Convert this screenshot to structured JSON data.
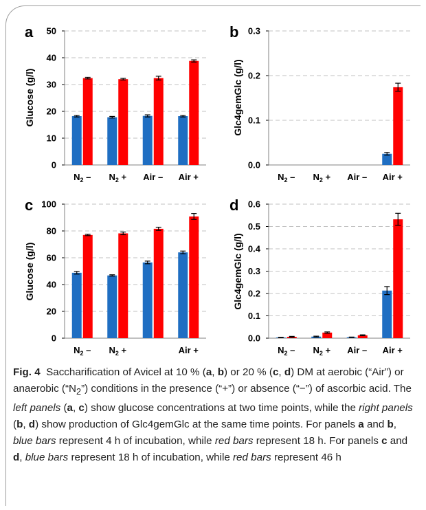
{
  "colors": {
    "blue": "#1f6ec2",
    "red": "#ff0000",
    "grid": "#c0c0c0",
    "axis": "#000000"
  },
  "chart_data": [
    {
      "type": "bar",
      "panel_label": "a",
      "categories": [
        "N2 –",
        "N2 +",
        "Air –",
        "Air +"
      ],
      "ylabel": "Glucose (g/l)",
      "ylim": [
        0,
        50
      ],
      "yticks": [
        "0",
        "10",
        "20",
        "30",
        "40",
        "50"
      ],
      "grid": true,
      "series": [
        {
          "color": "blue",
          "values": [
            18.2,
            17.8,
            18.3,
            18.2
          ],
          "errors": [
            0.3,
            0.3,
            0.4,
            0.3
          ]
        },
        {
          "color": "red",
          "values": [
            32.4,
            32.0,
            32.4,
            38.8
          ],
          "errors": [
            0.3,
            0.3,
            0.7,
            0.4
          ]
        }
      ]
    },
    {
      "type": "bar",
      "panel_label": "b",
      "categories": [
        "N2 –",
        "N2 +",
        "Air –",
        "Air +"
      ],
      "ylabel": "Glc4gemGlc (g/l)",
      "ylim": [
        0,
        0.3
      ],
      "yticks": [
        "0.0",
        "0.1",
        "0.2",
        "0.3"
      ],
      "grid": true,
      "series": [
        {
          "color": "blue",
          "values": [
            0,
            0,
            0,
            0.025
          ],
          "errors": [
            0,
            0,
            0,
            0.003
          ]
        },
        {
          "color": "red",
          "values": [
            0,
            0,
            0,
            0.174
          ],
          "errors": [
            0,
            0,
            0,
            0.009
          ]
        }
      ]
    },
    {
      "type": "bar",
      "panel_label": "c",
      "categories": [
        "N2 –",
        "N2 +",
        "",
        "Air +"
      ],
      "ylabel": "Glucose (g/l)",
      "ylim": [
        0,
        100
      ],
      "yticks": [
        "0",
        "20",
        "40",
        "60",
        "80",
        "100"
      ],
      "grid": true,
      "series": [
        {
          "color": "blue",
          "values": [
            48.8,
            46.8,
            56.5,
            64.0
          ],
          "errors": [
            1.0,
            0.5,
            1.0,
            1.0
          ]
        },
        {
          "color": "red",
          "values": [
            77.0,
            78.2,
            81.6,
            90.8
          ],
          "errors": [
            0.5,
            1.0,
            1.2,
            2.2
          ]
        }
      ]
    },
    {
      "type": "bar",
      "panel_label": "d",
      "categories": [
        "N2 –",
        "N2 +",
        "Air –",
        "Air +"
      ],
      "ylabel": "Glc4gemGlc (g/l)",
      "ylim": [
        0,
        0.6
      ],
      "yticks": [
        "0.0",
        "0.1",
        "0.2",
        "0.3",
        "0.4",
        "0.5",
        "0.6"
      ],
      "grid": true,
      "series": [
        {
          "color": "blue",
          "values": [
            0.003,
            0.007,
            0.004,
            0.213
          ],
          "errors": [
            0.001,
            0.002,
            0.001,
            0.018
          ]
        },
        {
          "color": "red",
          "values": [
            0.006,
            0.025,
            0.013,
            0.532
          ],
          "errors": [
            0.002,
            0.003,
            0.002,
            0.027
          ]
        }
      ]
    }
  ],
  "caption": {
    "fig_label": "Fig. 4",
    "text_html": "Saccharification of Avicel at 10 % (<b>a</b>, <b>b</b>) or 20 % (<b>c</b>, <b>d</b>) DM at aerobic (“Air”) or anaerobic (“N<sub>2</sub>”) conditions in the presence (“+”) or absence (“−”) of ascorbic acid. The <i>left panels</i> (<b>a</b>, <b>c</b>) show glucose concentrations at two time points, while the <i>right panels</i> (<b>b</b>, <b>d</b>) show production of Glc4gemGlc at the same time points. For panels <b>a</b> and <b>b</b>, <i>blue bars</i> represent 4 h of incubation, while <i>red bars</i> represent 18 h. For panels <b>c</b> and <b>d</b>, <i>blue bars</i> represent 18 h of incubation, while <i>red bars</i> represent 46 h"
  }
}
